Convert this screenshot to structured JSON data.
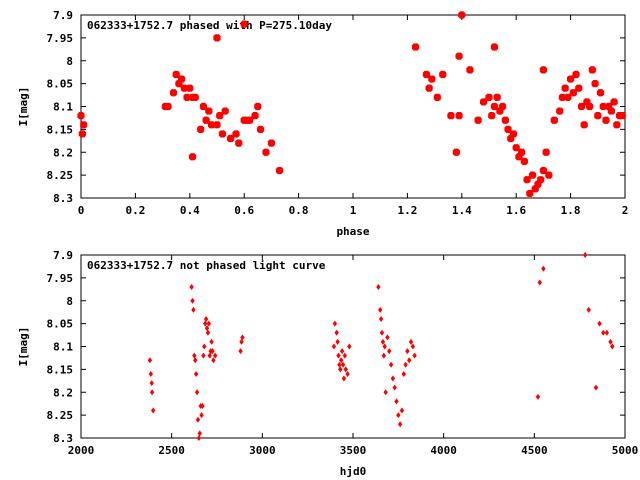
{
  "colors": {
    "points": "#ff0000",
    "axes": "#000000",
    "background": "#ffffff"
  },
  "chart_data": [
    {
      "type": "scatter",
      "title": "062333+1752.7 phased with P=275.10day",
      "xlabel": "phase",
      "ylabel": "I[mag]",
      "xlim": [
        0,
        2
      ],
      "ylim": [
        8.3,
        7.9
      ],
      "y_inverted": true,
      "grid": false,
      "legend": "none",
      "xticks": [
        "0",
        "0.2",
        "0.4",
        "0.6",
        "0.8",
        "1",
        "1.2",
        "1.4",
        "1.6",
        "1.8",
        "2"
      ],
      "yticks": [
        "7.9",
        "7.95",
        "8",
        "8.05",
        "8.1",
        "8.15",
        "8.2",
        "8.25",
        "8.3"
      ],
      "series": [
        {
          "x": [
            0.0,
            0.01,
            0.005,
            0.31,
            0.32,
            0.34,
            0.35,
            0.36,
            0.37,
            0.38,
            0.39,
            0.4,
            0.41,
            0.42,
            0.44,
            0.45,
            0.46,
            0.47,
            0.48,
            0.5,
            0.51,
            0.52,
            0.53,
            0.55,
            0.57,
            0.58,
            0.6,
            0.61,
            0.62,
            0.64,
            0.65,
            0.66,
            0.68,
            0.7,
            0.73,
            0.41,
            0.5,
            0.6,
            1.23,
            1.27,
            1.28,
            1.29,
            1.31,
            1.33,
            1.36,
            1.38,
            1.39,
            1.4,
            1.43,
            1.46,
            1.48,
            1.5,
            1.51,
            1.52,
            1.53,
            1.54,
            1.55,
            1.56,
            1.57,
            1.58,
            1.59,
            1.6,
            1.61,
            1.62,
            1.63,
            1.64,
            1.65,
            1.66,
            1.67,
            1.68,
            1.69,
            1.7,
            1.71,
            1.72,
            1.74,
            1.76,
            1.77,
            1.78,
            1.79,
            1.8,
            1.81,
            1.82,
            1.83,
            1.84,
            1.85,
            1.86,
            1.87,
            1.88,
            1.89,
            1.9,
            1.91,
            1.92,
            1.93,
            1.94,
            1.95,
            1.96,
            1.97,
            1.98,
            1.99,
            1.39,
            1.52,
            1.7
          ],
          "y": [
            8.12,
            8.14,
            8.16,
            8.1,
            8.1,
            8.07,
            8.03,
            8.05,
            8.04,
            8.06,
            8.08,
            8.06,
            8.08,
            8.08,
            8.15,
            8.1,
            8.13,
            8.11,
            8.14,
            8.14,
            8.12,
            8.16,
            8.11,
            8.17,
            8.16,
            8.18,
            8.13,
            8.13,
            8.13,
            8.12,
            8.1,
            8.15,
            8.2,
            8.18,
            8.24,
            8.21,
            7.95,
            7.92,
            7.97,
            8.03,
            8.06,
            8.04,
            8.08,
            8.03,
            8.12,
            8.2,
            8.12,
            7.9,
            8.02,
            8.13,
            8.09,
            8.08,
            8.12,
            8.1,
            8.08,
            8.11,
            8.1,
            8.13,
            8.15,
            8.17,
            8.16,
            8.19,
            8.21,
            8.2,
            8.22,
            8.26,
            8.29,
            8.25,
            8.28,
            8.27,
            8.26,
            8.24,
            8.2,
            8.25,
            8.13,
            8.11,
            8.08,
            8.06,
            8.08,
            8.04,
            8.07,
            8.03,
            8.06,
            8.1,
            8.14,
            8.09,
            8.1,
            8.02,
            8.05,
            8.12,
            8.07,
            8.1,
            8.13,
            8.1,
            8.11,
            8.09,
            8.14,
            8.12,
            8.12,
            7.99,
            7.97,
            8.02
          ],
          "marker": "filled-diamond"
        }
      ]
    },
    {
      "type": "scatter",
      "title": "062333+1752.7 not phased light curve",
      "xlabel": "hjd0",
      "ylabel": "I[mag]",
      "xlim": [
        2000,
        5000
      ],
      "ylim": [
        8.3,
        7.9
      ],
      "y_inverted": true,
      "grid": false,
      "legend": "none",
      "xticks": [
        "2000",
        "2500",
        "3000",
        "3500",
        "4000",
        "4500",
        "5000"
      ],
      "yticks": [
        "7.9",
        "7.95",
        "8",
        "8.05",
        "8.1",
        "8.15",
        "8.2",
        "8.25",
        "8.3"
      ],
      "series": [
        {
          "x": [
            2380,
            2385,
            2390,
            2392,
            2398,
            2610,
            2615,
            2620,
            2625,
            2630,
            2635,
            2640,
            2645,
            2650,
            2655,
            2660,
            2665,
            2670,
            2675,
            2680,
            2685,
            2690,
            2695,
            2700,
            2705,
            2710,
            2715,
            2720,
            2725,
            2730,
            2740,
            2880,
            2885,
            2890,
            3395,
            3400,
            3410,
            3415,
            3420,
            3425,
            3430,
            3435,
            3440,
            3445,
            3450,
            3455,
            3460,
            3470,
            3480,
            3640,
            3650,
            3655,
            3660,
            3665,
            3670,
            3675,
            3680,
            3690,
            3700,
            3710,
            3720,
            3730,
            3740,
            3750,
            3760,
            3770,
            3780,
            3790,
            3800,
            3810,
            3820,
            3830,
            3840,
            4520,
            4530,
            4550,
            4780,
            4800,
            4840,
            4860,
            4880,
            4900,
            4920,
            4930
          ],
          "y": [
            8.13,
            8.16,
            8.18,
            8.2,
            8.24,
            7.97,
            8.0,
            8.02,
            8.12,
            8.13,
            8.16,
            8.2,
            8.26,
            8.3,
            8.29,
            8.23,
            8.25,
            8.23,
            8.12,
            8.1,
            8.05,
            8.04,
            8.06,
            8.07,
            8.05,
            8.12,
            8.11,
            8.09,
            8.11,
            8.13,
            8.12,
            8.11,
            8.09,
            8.08,
            8.1,
            8.05,
            8.07,
            8.09,
            8.12,
            8.14,
            8.15,
            8.13,
            8.11,
            8.14,
            8.17,
            8.12,
            8.15,
            8.16,
            8.1,
            7.97,
            8.02,
            8.04,
            8.07,
            8.09,
            8.12,
            8.1,
            8.2,
            8.08,
            8.11,
            8.14,
            8.17,
            8.19,
            8.22,
            8.25,
            8.27,
            8.24,
            8.16,
            8.14,
            8.11,
            8.13,
            8.09,
            8.1,
            8.12,
            8.21,
            7.96,
            7.93,
            7.9,
            8.02,
            8.19,
            8.05,
            8.07,
            8.07,
            8.09,
            8.1
          ],
          "marker": "filled-diamond"
        }
      ]
    }
  ]
}
